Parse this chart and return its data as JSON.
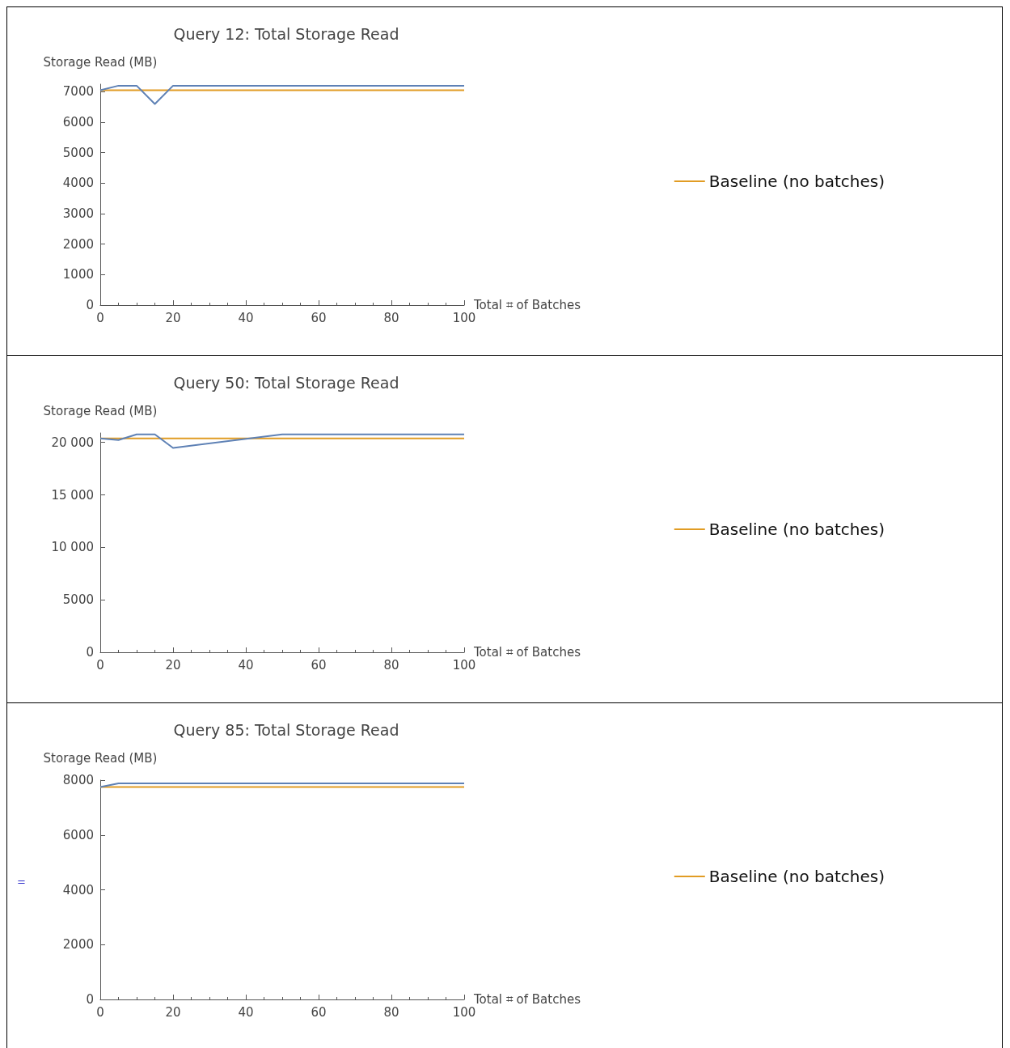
{
  "chart_data": [
    {
      "type": "line",
      "title": "Query 12: Total Storage Read",
      "ylabel": "Storage Read (MB)",
      "xlabel": "Total ⌗ of Batches",
      "xlim": [
        0,
        100
      ],
      "xticks": [
        0,
        20,
        40,
        60,
        80,
        100
      ],
      "ylim": [
        0,
        7250
      ],
      "yticks": [
        0,
        1000,
        2000,
        3000,
        4000,
        5000,
        6000,
        7000
      ],
      "grid": false,
      "legend": "right",
      "marker": "none",
      "line_style": "solid",
      "series": [
        {
          "color": "#5e81b5",
          "x": [
            0,
            5,
            10,
            15,
            20,
            100
          ],
          "values": [
            7050,
            7200,
            7200,
            6600,
            7200,
            7200
          ]
        },
        {
          "name": "Baseline (no batches)",
          "color": "#e19c24",
          "x": [
            0,
            100
          ],
          "values": [
            7050,
            7050
          ]
        }
      ]
    },
    {
      "type": "line",
      "title": "Query 50: Total Storage Read",
      "ylabel": "Storage Read (MB)",
      "xlabel": "Total ⌗ of Batches",
      "xlim": [
        0,
        100
      ],
      "xticks": [
        0,
        20,
        40,
        60,
        80,
        100
      ],
      "ylim": [
        0,
        20900
      ],
      "yticks": [
        0,
        5000,
        {
          "value": 10000,
          "label": "10 000"
        },
        {
          "value": 15000,
          "label": "15 000"
        },
        {
          "value": 20000,
          "label": "20 000"
        }
      ],
      "grid": false,
      "legend": "right",
      "marker": "none",
      "line_style": "solid",
      "series": [
        {
          "color": "#5e81b5",
          "x": [
            0,
            5,
            10,
            15,
            20,
            50,
            100
          ],
          "values": [
            20380,
            20230,
            20760,
            20760,
            19470,
            20760,
            20760
          ]
        },
        {
          "name": "Baseline (no batches)",
          "color": "#e19c24",
          "x": [
            0,
            100
          ],
          "values": [
            20380,
            20380
          ]
        }
      ]
    },
    {
      "type": "line",
      "title": "Query 85: Total Storage Read",
      "ylabel": "Storage Read (MB)",
      "xlabel": "Total ⌗ of Batches",
      "xlim": [
        0,
        100
      ],
      "xticks": [
        0,
        20,
        40,
        60,
        80,
        100
      ],
      "ylim": [
        0,
        8000
      ],
      "yticks": [
        0,
        2000,
        4000,
        6000,
        8000
      ],
      "grid": false,
      "legend": "right",
      "marker": "none",
      "line_style": "solid",
      "annotations": [
        "="
      ],
      "series": [
        {
          "color": "#5e81b5",
          "x": [
            0,
            5,
            100
          ],
          "values": [
            7750,
            7880,
            7880
          ]
        },
        {
          "name": "Baseline (no batches)",
          "color": "#e19c24",
          "x": [
            0,
            100
          ],
          "values": [
            7750,
            7750
          ]
        }
      ]
    }
  ]
}
